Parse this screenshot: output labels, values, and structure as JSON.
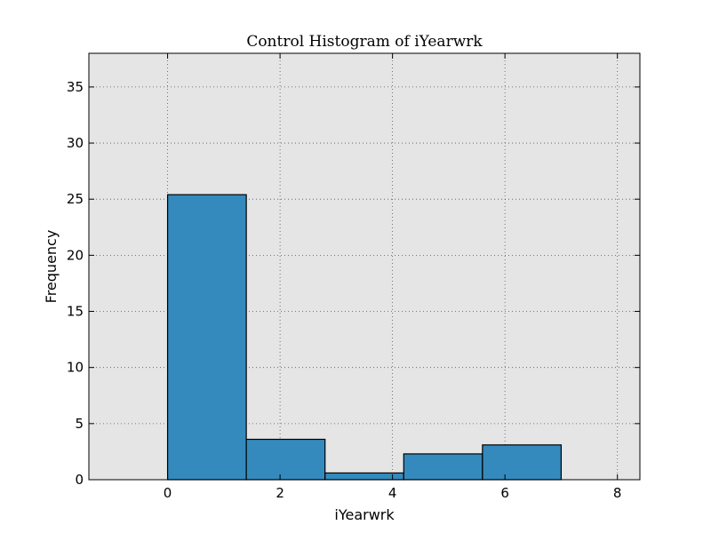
{
  "chart_data": {
    "type": "bar",
    "title": "Control Histogram of iYearwrk",
    "xlabel": "iYearwrk",
    "ylabel": "Frequency",
    "xlim": [
      -1.4,
      8.4
    ],
    "ylim": [
      0,
      38
    ],
    "xticks": [
      0,
      2,
      4,
      6,
      8
    ],
    "yticks": [
      0,
      5,
      10,
      15,
      20,
      25,
      30,
      35
    ],
    "bins": [
      {
        "x0": 0.0,
        "x1": 1.4,
        "value": 25.4
      },
      {
        "x0": 1.4,
        "x1": 2.8,
        "value": 3.6
      },
      {
        "x0": 2.8,
        "x1": 4.2,
        "value": 0.6
      },
      {
        "x0": 4.2,
        "x1": 5.6,
        "value": 2.3
      },
      {
        "x0": 5.6,
        "x1": 7.0,
        "value": 3.1
      }
    ],
    "bar_color": "#348abd",
    "background_color": "#e5e5e5",
    "grid": true
  }
}
